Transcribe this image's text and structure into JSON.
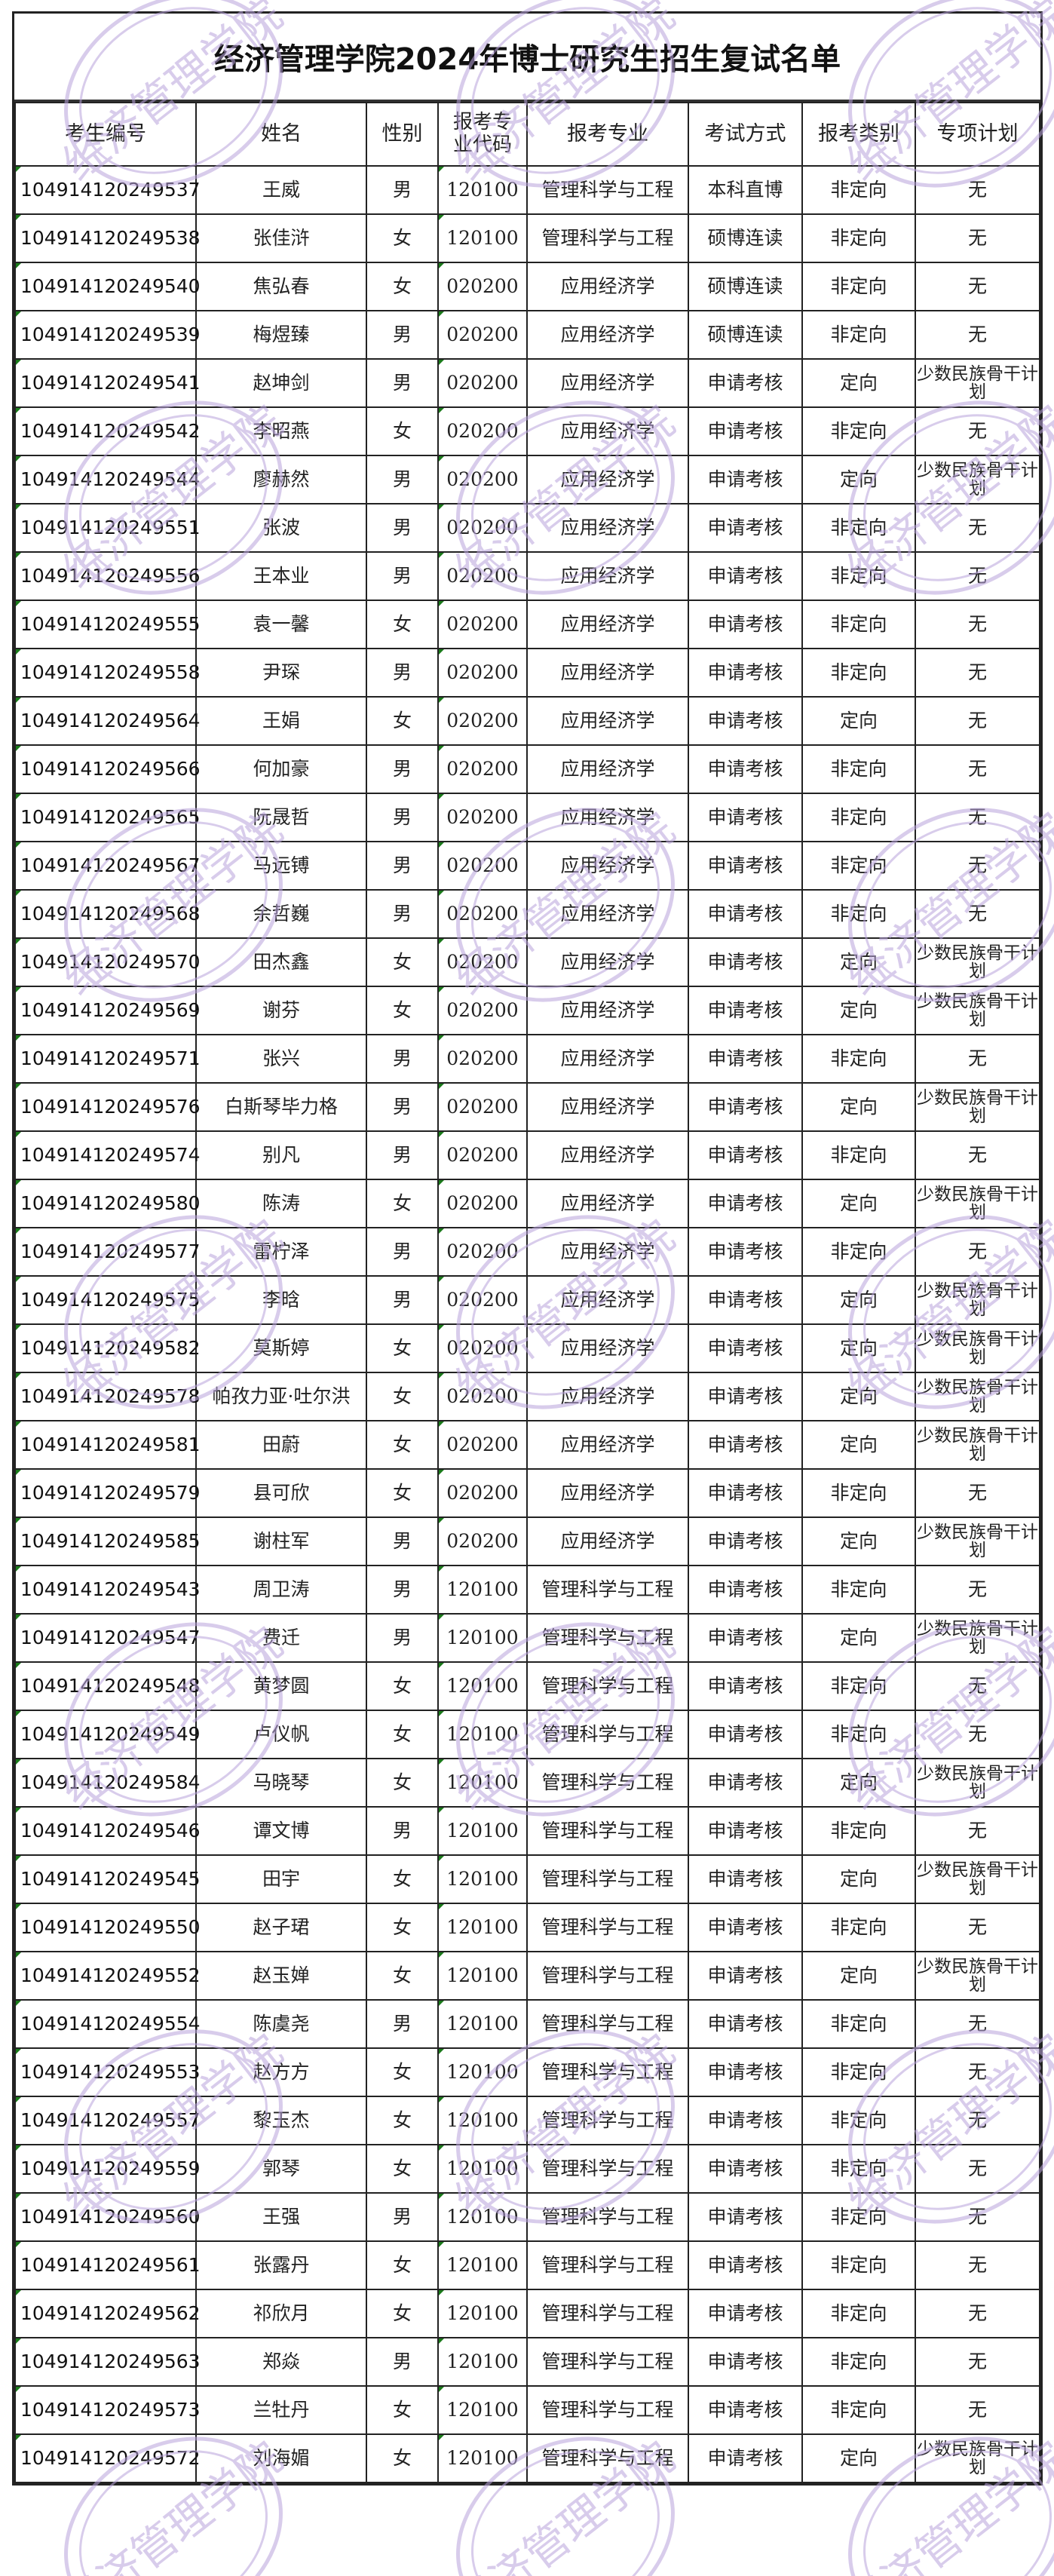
{
  "title": "经济管理学院2024年博士研究生招生复试名单",
  "watermark": "经济管理学院",
  "colors": {
    "watermark": "#b9a3dc",
    "border": "#222222",
    "cell_marker": "#1a7a1a"
  },
  "headers": [
    "考生编号",
    "姓名",
    "性别",
    "报考专业代码",
    "报考专业",
    "考试方式",
    "报考类别",
    "专项计划"
  ],
  "rows": [
    [
      "104914120249537",
      "王威",
      "男",
      "120100",
      "管理科学与工程",
      "本科直博",
      "非定向",
      "无"
    ],
    [
      "104914120249538",
      "张佳浒",
      "女",
      "120100",
      "管理科学与工程",
      "硕博连读",
      "非定向",
      "无"
    ],
    [
      "104914120249540",
      "焦弘春",
      "女",
      "020200",
      "应用经济学",
      "硕博连读",
      "非定向",
      "无"
    ],
    [
      "104914120249539",
      "梅煜臻",
      "男",
      "020200",
      "应用经济学",
      "硕博连读",
      "非定向",
      "无"
    ],
    [
      "104914120249541",
      "赵坤剑",
      "男",
      "020200",
      "应用经济学",
      "申请考核",
      "定向",
      "少数民族骨干计划"
    ],
    [
      "104914120249542",
      "李昭燕",
      "女",
      "020200",
      "应用经济学",
      "申请考核",
      "非定向",
      "无"
    ],
    [
      "104914120249544",
      "廖赫然",
      "男",
      "020200",
      "应用经济学",
      "申请考核",
      "定向",
      "少数民族骨干计划"
    ],
    [
      "104914120249551",
      "张波",
      "男",
      "020200",
      "应用经济学",
      "申请考核",
      "非定向",
      "无"
    ],
    [
      "104914120249556",
      "王本业",
      "男",
      "020200",
      "应用经济学",
      "申请考核",
      "非定向",
      "无"
    ],
    [
      "104914120249555",
      "袁一馨",
      "女",
      "020200",
      "应用经济学",
      "申请考核",
      "非定向",
      "无"
    ],
    [
      "104914120249558",
      "尹琛",
      "男",
      "020200",
      "应用经济学",
      "申请考核",
      "非定向",
      "无"
    ],
    [
      "104914120249564",
      "王娟",
      "女",
      "020200",
      "应用经济学",
      "申请考核",
      "定向",
      "无"
    ],
    [
      "104914120249566",
      "何加豪",
      "男",
      "020200",
      "应用经济学",
      "申请考核",
      "非定向",
      "无"
    ],
    [
      "104914120249565",
      "阮晟哲",
      "男",
      "020200",
      "应用经济学",
      "申请考核",
      "非定向",
      "无"
    ],
    [
      "104914120249567",
      "马远镈",
      "男",
      "020200",
      "应用经济学",
      "申请考核",
      "非定向",
      "无"
    ],
    [
      "104914120249568",
      "余哲巍",
      "男",
      "020200",
      "应用经济学",
      "申请考核",
      "非定向",
      "无"
    ],
    [
      "104914120249570",
      "田杰鑫",
      "女",
      "020200",
      "应用经济学",
      "申请考核",
      "定向",
      "少数民族骨干计划"
    ],
    [
      "104914120249569",
      "谢芬",
      "女",
      "020200",
      "应用经济学",
      "申请考核",
      "定向",
      "少数民族骨干计划"
    ],
    [
      "104914120249571",
      "张兴",
      "男",
      "020200",
      "应用经济学",
      "申请考核",
      "非定向",
      "无"
    ],
    [
      "104914120249576",
      "白斯琴毕力格",
      "男",
      "020200",
      "应用经济学",
      "申请考核",
      "定向",
      "少数民族骨干计划"
    ],
    [
      "104914120249574",
      "别凡",
      "男",
      "020200",
      "应用经济学",
      "申请考核",
      "非定向",
      "无"
    ],
    [
      "104914120249580",
      "陈涛",
      "女",
      "020200",
      "应用经济学",
      "申请考核",
      "定向",
      "少数民族骨干计划"
    ],
    [
      "104914120249577",
      "雷柠泽",
      "男",
      "020200",
      "应用经济学",
      "申请考核",
      "非定向",
      "无"
    ],
    [
      "104914120249575",
      "李晗",
      "男",
      "020200",
      "应用经济学",
      "申请考核",
      "定向",
      "少数民族骨干计划"
    ],
    [
      "104914120249582",
      "莫斯婷",
      "女",
      "020200",
      "应用经济学",
      "申请考核",
      "定向",
      "少数民族骨干计划"
    ],
    [
      "104914120249578",
      "帕孜力亚·吐尔洪",
      "女",
      "020200",
      "应用经济学",
      "申请考核",
      "定向",
      "少数民族骨干计划"
    ],
    [
      "104914120249581",
      "田蔚",
      "女",
      "020200",
      "应用经济学",
      "申请考核",
      "定向",
      "少数民族骨干计划"
    ],
    [
      "104914120249579",
      "县可欣",
      "女",
      "020200",
      "应用经济学",
      "申请考核",
      "非定向",
      "无"
    ],
    [
      "104914120249585",
      "谢柱军",
      "男",
      "020200",
      "应用经济学",
      "申请考核",
      "定向",
      "少数民族骨干计划"
    ],
    [
      "104914120249543",
      "周卫涛",
      "男",
      "120100",
      "管理科学与工程",
      "申请考核",
      "非定向",
      "无"
    ],
    [
      "104914120249547",
      "费迁",
      "男",
      "120100",
      "管理科学与工程",
      "申请考核",
      "定向",
      "少数民族骨干计划"
    ],
    [
      "104914120249548",
      "黄梦圆",
      "女",
      "120100",
      "管理科学与工程",
      "申请考核",
      "非定向",
      "无"
    ],
    [
      "104914120249549",
      "卢仪帆",
      "女",
      "120100",
      "管理科学与工程",
      "申请考核",
      "非定向",
      "无"
    ],
    [
      "104914120249584",
      "马晓琴",
      "女",
      "120100",
      "管理科学与工程",
      "申请考核",
      "定向",
      "少数民族骨干计划"
    ],
    [
      "104914120249546",
      "谭文博",
      "男",
      "120100",
      "管理科学与工程",
      "申请考核",
      "非定向",
      "无"
    ],
    [
      "104914120249545",
      "田宇",
      "女",
      "120100",
      "管理科学与工程",
      "申请考核",
      "定向",
      "少数民族骨干计划"
    ],
    [
      "104914120249550",
      "赵子珺",
      "女",
      "120100",
      "管理科学与工程",
      "申请考核",
      "非定向",
      "无"
    ],
    [
      "104914120249552",
      "赵玉婵",
      "女",
      "120100",
      "管理科学与工程",
      "申请考核",
      "定向",
      "少数民族骨干计划"
    ],
    [
      "104914120249554",
      "陈虞尧",
      "男",
      "120100",
      "管理科学与工程",
      "申请考核",
      "非定向",
      "无"
    ],
    [
      "104914120249553",
      "赵方方",
      "女",
      "120100",
      "管理科学与工程",
      "申请考核",
      "非定向",
      "无"
    ],
    [
      "104914120249557",
      "黎玉杰",
      "女",
      "120100",
      "管理科学与工程",
      "申请考核",
      "非定向",
      "无"
    ],
    [
      "104914120249559",
      "郭琴",
      "女",
      "120100",
      "管理科学与工程",
      "申请考核",
      "非定向",
      "无"
    ],
    [
      "104914120249560",
      "王强",
      "男",
      "120100",
      "管理科学与工程",
      "申请考核",
      "非定向",
      "无"
    ],
    [
      "104914120249561",
      "张露丹",
      "女",
      "120100",
      "管理科学与工程",
      "申请考核",
      "非定向",
      "无"
    ],
    [
      "104914120249562",
      "祁欣月",
      "女",
      "120100",
      "管理科学与工程",
      "申请考核",
      "非定向",
      "无"
    ],
    [
      "104914120249563",
      "郑焱",
      "男",
      "120100",
      "管理科学与工程",
      "申请考核",
      "非定向",
      "无"
    ],
    [
      "104914120249573",
      "兰牡丹",
      "女",
      "120100",
      "管理科学与工程",
      "申请考核",
      "非定向",
      "无"
    ],
    [
      "104914120249572",
      "刘海媚",
      "女",
      "120100",
      "管理科学与工程",
      "申请考核",
      "定向",
      "少数民族骨干计划"
    ]
  ]
}
